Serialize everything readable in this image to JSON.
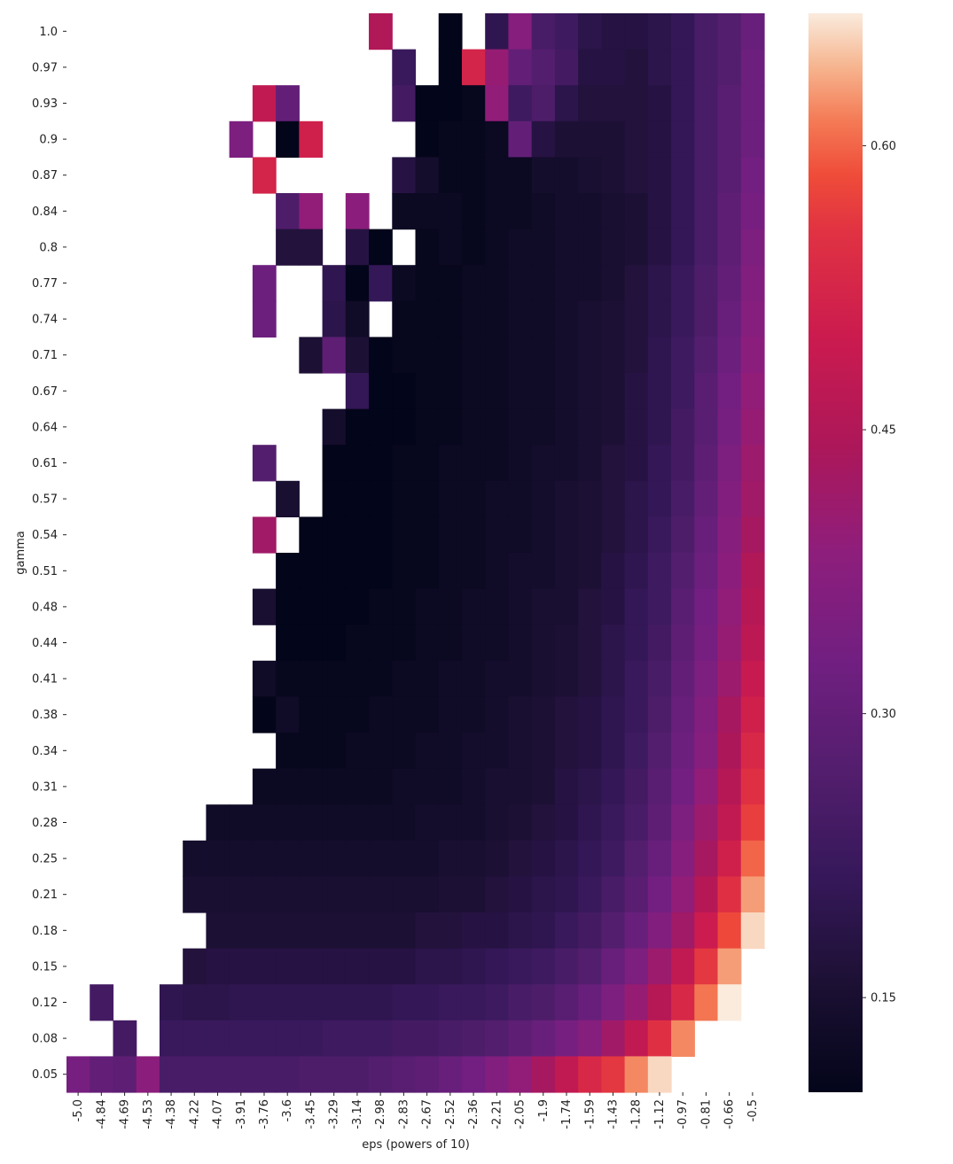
{
  "chart_data": {
    "type": "heatmap",
    "title": "",
    "xlabel": "eps (powers of 10)",
    "ylabel": "gamma",
    "x_tick_labels": [
      "-5.0",
      "-4.84",
      "-4.69",
      "-4.53",
      "-4.38",
      "-4.22",
      "-4.07",
      "-3.91",
      "-3.76",
      "-3.6",
      "-3.45",
      "-3.29",
      "-3.14",
      "-2.98",
      "-2.83",
      "-2.67",
      "-2.52",
      "-2.36",
      "-2.21",
      "-2.05",
      "-1.9",
      "-1.74",
      "-1.59",
      "-1.43",
      "-1.28",
      "-1.12",
      "-0.97",
      "-0.81",
      "-0.66",
      "-0.5"
    ],
    "y_tick_labels": [
      "1.0",
      "0.97",
      "0.93",
      "0.9",
      "0.87",
      "0.84",
      "0.8",
      "0.77",
      "0.74",
      "0.71",
      "0.67",
      "0.64",
      "0.61",
      "0.57",
      "0.54",
      "0.51",
      "0.48",
      "0.44",
      "0.41",
      "0.38",
      "0.34",
      "0.31",
      "0.28",
      "0.25",
      "0.21",
      "0.18",
      "0.15",
      "0.12",
      "0.08",
      "0.05"
    ],
    "colorbar": {
      "range": [
        0.1,
        0.67
      ],
      "ticks": [
        0.15,
        0.3,
        0.45,
        0.6
      ],
      "tick_labels": [
        "0.15",
        "0.30",
        "0.45",
        "0.60"
      ],
      "colormap": "rocket"
    },
    "missing_value_color": "#ffffff",
    "values": [
      [
        null,
        null,
        null,
        null,
        null,
        null,
        null,
        null,
        null,
        null,
        null,
        null,
        null,
        0.45,
        null,
        null,
        0.1,
        null,
        0.2,
        0.37,
        0.25,
        0.23,
        0.19,
        0.18,
        0.18,
        0.19,
        0.21,
        0.25,
        0.27,
        0.31
      ],
      [
        null,
        null,
        null,
        null,
        null,
        null,
        null,
        null,
        null,
        null,
        null,
        null,
        null,
        null,
        0.22,
        null,
        0.1,
        0.52,
        0.4,
        0.3,
        0.27,
        0.24,
        0.18,
        0.18,
        0.17,
        0.19,
        0.21,
        0.25,
        0.27,
        0.32
      ],
      [
        null,
        null,
        null,
        null,
        null,
        null,
        null,
        null,
        0.48,
        0.3,
        null,
        null,
        null,
        null,
        0.24,
        0.1,
        0.1,
        0.11,
        0.39,
        0.23,
        0.26,
        0.19,
        0.17,
        0.17,
        0.17,
        0.18,
        0.21,
        0.25,
        0.28,
        0.32
      ],
      [
        null,
        null,
        null,
        null,
        null,
        null,
        null,
        0.35,
        null,
        0.09,
        0.51,
        null,
        null,
        null,
        null,
        0.1,
        0.11,
        0.11,
        0.12,
        0.3,
        0.18,
        0.16,
        0.16,
        0.16,
        0.17,
        0.18,
        0.21,
        0.25,
        0.28,
        0.32
      ],
      [
        null,
        null,
        null,
        null,
        null,
        null,
        null,
        null,
        0.52,
        null,
        null,
        null,
        null,
        null,
        0.18,
        0.14,
        0.11,
        0.11,
        0.12,
        0.12,
        0.14,
        0.14,
        0.15,
        0.16,
        0.17,
        0.18,
        0.21,
        0.25,
        0.28,
        0.33
      ],
      [
        null,
        null,
        null,
        null,
        null,
        null,
        null,
        null,
        null,
        0.26,
        0.39,
        null,
        0.38,
        null,
        0.12,
        0.12,
        0.12,
        0.11,
        0.12,
        0.12,
        0.13,
        0.14,
        0.14,
        0.15,
        0.16,
        0.18,
        0.21,
        0.25,
        0.29,
        0.34
      ],
      [
        null,
        null,
        null,
        null,
        null,
        null,
        null,
        null,
        null,
        0.17,
        0.17,
        null,
        0.18,
        0.09,
        null,
        0.11,
        0.12,
        0.11,
        0.12,
        0.13,
        0.13,
        0.14,
        0.14,
        0.15,
        0.16,
        0.18,
        0.21,
        0.25,
        0.29,
        0.35
      ],
      [
        null,
        null,
        null,
        null,
        null,
        null,
        null,
        null,
        0.32,
        null,
        null,
        0.2,
        0.09,
        0.21,
        0.12,
        0.11,
        0.11,
        0.12,
        0.12,
        0.13,
        0.13,
        0.14,
        0.14,
        0.15,
        0.17,
        0.19,
        0.22,
        0.26,
        0.3,
        0.36
      ],
      [
        null,
        null,
        null,
        null,
        null,
        null,
        null,
        null,
        0.32,
        null,
        null,
        0.19,
        0.13,
        null,
        0.11,
        0.11,
        0.11,
        0.12,
        0.12,
        0.13,
        0.13,
        0.14,
        0.15,
        0.16,
        0.17,
        0.19,
        0.22,
        0.26,
        0.31,
        0.37
      ],
      [
        null,
        null,
        null,
        null,
        null,
        null,
        null,
        null,
        null,
        null,
        0.16,
        0.29,
        0.16,
        0.1,
        0.11,
        0.11,
        0.11,
        0.12,
        0.12,
        0.13,
        0.13,
        0.14,
        0.15,
        0.16,
        0.17,
        0.2,
        0.23,
        0.27,
        0.32,
        0.38
      ],
      [
        null,
        null,
        null,
        null,
        null,
        null,
        null,
        null,
        null,
        null,
        null,
        null,
        0.21,
        0.1,
        0.1,
        0.11,
        0.11,
        0.12,
        0.12,
        0.13,
        0.13,
        0.14,
        0.15,
        0.16,
        0.18,
        0.2,
        0.23,
        0.28,
        0.33,
        0.39
      ],
      [
        null,
        null,
        null,
        null,
        null,
        null,
        null,
        null,
        null,
        null,
        null,
        0.14,
        0.1,
        0.1,
        0.1,
        0.11,
        0.11,
        0.12,
        0.12,
        0.13,
        0.13,
        0.14,
        0.15,
        0.16,
        0.18,
        0.2,
        0.24,
        0.28,
        0.34,
        0.4
      ],
      [
        null,
        null,
        null,
        null,
        null,
        null,
        null,
        null,
        0.27,
        null,
        null,
        0.1,
        0.1,
        0.1,
        0.11,
        0.11,
        0.12,
        0.12,
        0.12,
        0.13,
        0.14,
        0.14,
        0.15,
        0.17,
        0.18,
        0.21,
        0.24,
        0.29,
        0.35,
        0.41
      ],
      [
        null,
        null,
        null,
        null,
        null,
        null,
        null,
        null,
        null,
        0.15,
        null,
        0.1,
        0.1,
        0.1,
        0.11,
        0.11,
        0.12,
        0.12,
        0.13,
        0.13,
        0.14,
        0.15,
        0.16,
        0.17,
        0.19,
        0.21,
        0.25,
        0.3,
        0.36,
        0.42
      ],
      [
        null,
        null,
        null,
        null,
        null,
        null,
        null,
        null,
        0.42,
        null,
        0.1,
        0.1,
        0.1,
        0.1,
        0.11,
        0.11,
        0.12,
        0.12,
        0.13,
        0.13,
        0.14,
        0.15,
        0.16,
        0.17,
        0.19,
        0.22,
        0.26,
        0.31,
        0.37,
        0.43
      ],
      [
        null,
        null,
        null,
        null,
        null,
        null,
        null,
        null,
        null,
        0.1,
        0.1,
        0.1,
        0.1,
        0.1,
        0.11,
        0.11,
        0.12,
        0.12,
        0.13,
        0.14,
        0.14,
        0.15,
        0.16,
        0.18,
        0.2,
        0.23,
        0.27,
        0.32,
        0.38,
        0.45
      ],
      [
        null,
        null,
        null,
        null,
        null,
        null,
        null,
        null,
        0.15,
        0.1,
        0.1,
        0.1,
        0.1,
        0.11,
        0.11,
        0.12,
        0.12,
        0.13,
        0.13,
        0.14,
        0.15,
        0.15,
        0.17,
        0.18,
        0.21,
        0.23,
        0.28,
        0.33,
        0.39,
        0.46
      ],
      [
        null,
        null,
        null,
        null,
        null,
        null,
        null,
        null,
        null,
        0.1,
        0.1,
        0.1,
        0.11,
        0.11,
        0.11,
        0.12,
        0.12,
        0.13,
        0.13,
        0.14,
        0.15,
        0.16,
        0.17,
        0.19,
        0.21,
        0.24,
        0.29,
        0.34,
        0.4,
        0.47
      ],
      [
        null,
        null,
        null,
        null,
        null,
        null,
        null,
        null,
        0.13,
        0.11,
        0.11,
        0.11,
        0.11,
        0.11,
        0.12,
        0.12,
        0.13,
        0.13,
        0.14,
        0.14,
        0.15,
        0.16,
        0.17,
        0.19,
        0.22,
        0.25,
        0.3,
        0.35,
        0.41,
        0.49
      ],
      [
        null,
        null,
        null,
        null,
        null,
        null,
        null,
        null,
        0.1,
        0.13,
        0.11,
        0.11,
        0.11,
        0.12,
        0.12,
        0.12,
        0.13,
        0.13,
        0.14,
        0.15,
        0.16,
        0.17,
        0.18,
        0.2,
        0.22,
        0.26,
        0.31,
        0.36,
        0.43,
        0.51
      ],
      [
        null,
        null,
        null,
        null,
        null,
        null,
        null,
        null,
        null,
        0.11,
        0.11,
        0.11,
        0.12,
        0.12,
        0.12,
        0.13,
        0.13,
        0.14,
        0.14,
        0.15,
        0.16,
        0.17,
        0.18,
        0.2,
        0.23,
        0.27,
        0.32,
        0.37,
        0.44,
        0.53
      ],
      [
        null,
        null,
        null,
        null,
        null,
        null,
        null,
        null,
        0.12,
        0.12,
        0.12,
        0.12,
        0.12,
        0.12,
        0.13,
        0.13,
        0.13,
        0.14,
        0.15,
        0.15,
        0.16,
        0.18,
        0.19,
        0.21,
        0.24,
        0.28,
        0.33,
        0.39,
        0.46,
        0.55
      ],
      [
        null,
        null,
        null,
        null,
        null,
        null,
        0.13,
        0.13,
        0.13,
        0.13,
        0.13,
        0.13,
        0.13,
        0.13,
        0.13,
        0.14,
        0.14,
        0.14,
        0.15,
        0.16,
        0.17,
        0.18,
        0.2,
        0.22,
        0.25,
        0.29,
        0.35,
        0.41,
        0.48,
        0.57
      ],
      [
        null,
        null,
        null,
        null,
        null,
        0.14,
        0.14,
        0.14,
        0.14,
        0.14,
        0.14,
        0.14,
        0.14,
        0.14,
        0.14,
        0.14,
        0.15,
        0.15,
        0.16,
        0.17,
        0.18,
        0.19,
        0.21,
        0.23,
        0.27,
        0.31,
        0.37,
        0.43,
        0.51,
        0.6
      ],
      [
        null,
        null,
        null,
        null,
        null,
        0.15,
        0.15,
        0.15,
        0.15,
        0.15,
        0.15,
        0.15,
        0.15,
        0.15,
        0.15,
        0.15,
        0.16,
        0.16,
        0.17,
        0.18,
        0.19,
        0.2,
        0.22,
        0.25,
        0.28,
        0.33,
        0.39,
        0.46,
        0.55,
        0.63
      ],
      [
        null,
        null,
        null,
        null,
        null,
        null,
        0.16,
        0.16,
        0.16,
        0.16,
        0.16,
        0.16,
        0.16,
        0.16,
        0.16,
        0.17,
        0.17,
        0.18,
        0.18,
        0.19,
        0.2,
        0.22,
        0.24,
        0.27,
        0.31,
        0.36,
        0.42,
        0.5,
        0.58,
        0.66
      ],
      [
        null,
        null,
        null,
        null,
        null,
        0.17,
        0.18,
        0.18,
        0.18,
        0.18,
        0.18,
        0.18,
        0.18,
        0.18,
        0.18,
        0.19,
        0.19,
        0.2,
        0.21,
        0.22,
        0.23,
        0.25,
        0.27,
        0.31,
        0.35,
        0.41,
        0.48,
        0.56,
        0.63,
        null
      ],
      [
        null,
        0.24,
        null,
        null,
        0.2,
        0.19,
        0.19,
        0.2,
        0.2,
        0.2,
        0.2,
        0.2,
        0.2,
        0.2,
        0.21,
        0.21,
        0.22,
        0.22,
        0.23,
        0.25,
        0.26,
        0.28,
        0.31,
        0.35,
        0.4,
        0.46,
        0.53,
        0.61,
        0.67,
        null
      ],
      [
        null,
        null,
        0.24,
        null,
        0.22,
        0.22,
        0.22,
        0.22,
        0.22,
        0.22,
        0.22,
        0.23,
        0.23,
        0.23,
        0.24,
        0.24,
        0.25,
        0.26,
        0.27,
        0.29,
        0.31,
        0.34,
        0.37,
        0.42,
        0.48,
        0.55,
        0.62,
        null,
        null,
        null
      ],
      [
        0.34,
        0.3,
        0.29,
        0.38,
        0.25,
        0.25,
        0.25,
        0.25,
        0.25,
        0.25,
        0.26,
        0.26,
        0.26,
        0.27,
        0.28,
        0.29,
        0.31,
        0.33,
        0.36,
        0.39,
        0.43,
        0.48,
        0.53,
        0.56,
        0.62,
        0.66,
        null,
        null,
        null,
        null
      ]
    ]
  }
}
